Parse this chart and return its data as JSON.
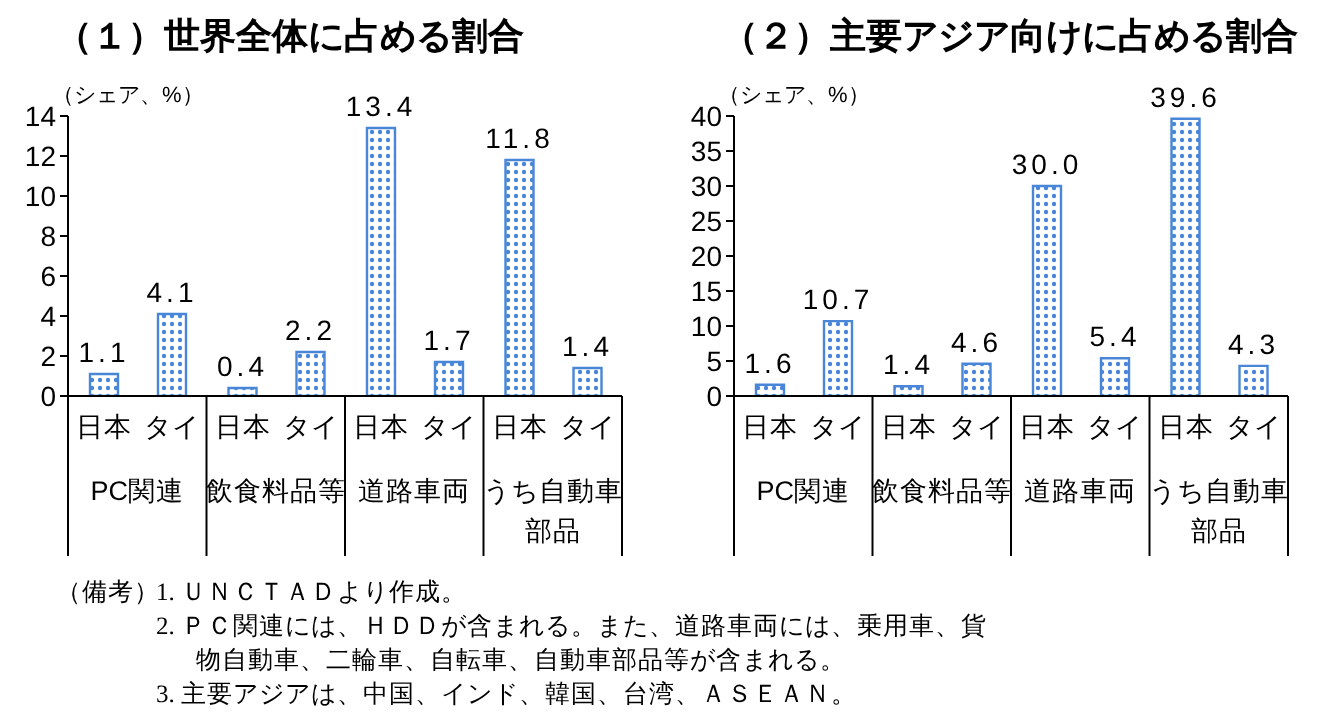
{
  "chart_data": [
    {
      "type": "bar",
      "title": "（１）世界全体に占める割合",
      "ylabel": "（シェア、%）",
      "categories": [
        "PC関連",
        "飲食料品等",
        "道路車両",
        "うち自動車部品"
      ],
      "series": [
        {
          "name": "日本",
          "color": "#4a86d8",
          "values": [
            1.1,
            0.4,
            13.4,
            11.8
          ],
          "value_labels": [
            "1.1",
            "0.4",
            "13.4",
            "11.8"
          ]
        },
        {
          "name": "タイ",
          "color": "#4a86d8",
          "values": [
            4.1,
            2.2,
            1.7,
            1.4
          ],
          "value_labels": [
            "4.1",
            "2.2",
            "1.7",
            "1.4"
          ]
        }
      ],
      "ylim": [
        0,
        14
      ],
      "yticks": [
        0,
        2,
        4,
        6,
        8,
        10,
        12,
        14
      ],
      "grid": false,
      "legend": false,
      "annotations": [
        "（備考）",
        "1. ＵＮＣＴＡＤより作成。",
        "2. ＰＣ関連には、ＨＤＤが含まれる。また、道路車両には、乗用車、貨物自動車、二輪車、自転車、自動車部品等が含まれる。",
        "3. 主要アジアは、中国、インド、韓国、台湾、ＡＳＥＡＮ。"
      ]
    },
    {
      "type": "bar",
      "title": "（２）主要アジア向けに占める割合",
      "ylabel": "（シェア、%）",
      "categories": [
        "PC関連",
        "飲食料品等",
        "道路車両",
        "うち自動車部品"
      ],
      "series": [
        {
          "name": "日本",
          "color": "#4a86d8",
          "values": [
            1.6,
            1.4,
            30.0,
            39.6
          ],
          "value_labels": [
            "1.6",
            "1.4",
            "30.0",
            "39.6"
          ]
        },
        {
          "name": "タイ",
          "color": "#4a86d8",
          "values": [
            10.7,
            4.6,
            5.4,
            4.3
          ],
          "value_labels": [
            "10.7",
            "4.6",
            "5.4",
            "4.3"
          ]
        }
      ],
      "ylim": [
        0,
        40
      ],
      "yticks": [
        0,
        5,
        10,
        15,
        20,
        25,
        30,
        35,
        40
      ],
      "grid": false,
      "legend": false
    }
  ]
}
